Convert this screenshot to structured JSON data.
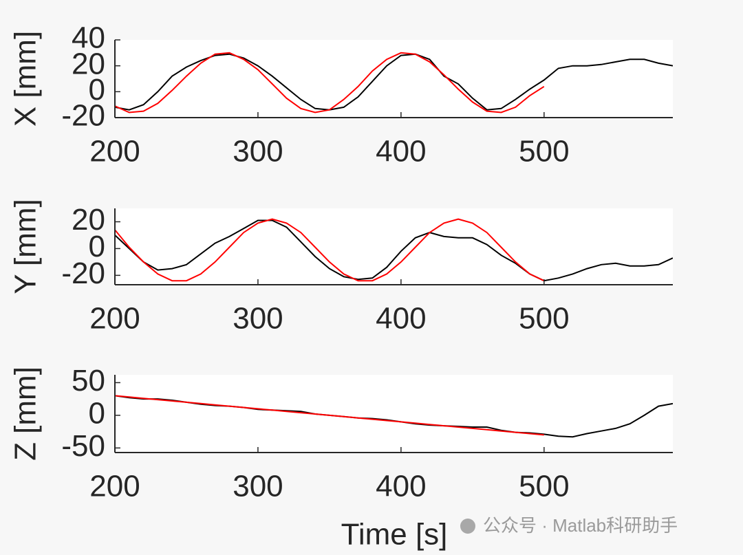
{
  "chart_data": [
    {
      "type": "line",
      "ylabel": "X [mm]",
      "xlim": [
        200,
        590
      ],
      "xticks": [
        200,
        300,
        400,
        500
      ],
      "ylim": [
        -20,
        40
      ],
      "yticks": [
        -20,
        0,
        20,
        40
      ],
      "series": [
        {
          "color": "#000000",
          "x": [
            200,
            210,
            220,
            230,
            240,
            250,
            260,
            270,
            280,
            290,
            300,
            310,
            320,
            330,
            340,
            350,
            360,
            370,
            380,
            390,
            400,
            410,
            420,
            430,
            440,
            450,
            460,
            470,
            480,
            490,
            500,
            510,
            520,
            530,
            540,
            550,
            560,
            570,
            580,
            590
          ],
          "values": [
            -12,
            -14,
            -10,
            0,
            12,
            19,
            24,
            28,
            29,
            26,
            20,
            12,
            3,
            -6,
            -13,
            -14,
            -12,
            -4,
            8,
            20,
            28,
            29,
            25,
            12,
            6,
            -5,
            -14,
            -13,
            -6,
            2,
            9,
            18,
            20,
            20,
            21,
            23,
            25,
            25,
            22,
            20
          ]
        },
        {
          "color": "#ff0000",
          "x": [
            200,
            210,
            220,
            230,
            240,
            250,
            260,
            270,
            280,
            290,
            300,
            310,
            320,
            330,
            340,
            350,
            360,
            370,
            380,
            390,
            400,
            410,
            420,
            430,
            440,
            450,
            460,
            470,
            480,
            490,
            500
          ],
          "values": [
            -11,
            -16,
            -15,
            -9,
            1,
            12,
            22,
            29,
            30,
            25,
            17,
            6,
            -5,
            -13,
            -16,
            -14,
            -6,
            4,
            16,
            25,
            30,
            29,
            23,
            13,
            2,
            -8,
            -15,
            -16,
            -12,
            -3,
            4
          ]
        }
      ]
    },
    {
      "type": "line",
      "ylabel": "Y [mm]",
      "xlim": [
        200,
        590
      ],
      "xticks": [
        200,
        300,
        400,
        500
      ],
      "ylim": [
        -27,
        30
      ],
      "yticks": [
        -20,
        0,
        20
      ],
      "series": [
        {
          "color": "#000000",
          "x": [
            200,
            210,
            220,
            230,
            240,
            250,
            260,
            270,
            280,
            290,
            300,
            310,
            320,
            330,
            340,
            350,
            360,
            370,
            380,
            390,
            400,
            410,
            420,
            430,
            440,
            450,
            460,
            470,
            480,
            490,
            500,
            510,
            520,
            530,
            540,
            550,
            560,
            570,
            580,
            590
          ],
          "values": [
            10,
            0,
            -10,
            -16,
            -15,
            -12,
            -4,
            4,
            9,
            15,
            21,
            21,
            16,
            5,
            -6,
            -15,
            -21,
            -23,
            -22,
            -14,
            -2,
            8,
            12,
            9,
            8,
            8,
            3,
            -5,
            -11,
            -19,
            -24,
            -22,
            -19,
            -15,
            -12,
            -11,
            -13,
            -13,
            -12,
            -7
          ]
        },
        {
          "color": "#ff0000",
          "x": [
            200,
            210,
            220,
            230,
            240,
            250,
            260,
            270,
            280,
            290,
            300,
            310,
            320,
            330,
            340,
            350,
            360,
            370,
            380,
            390,
            400,
            410,
            420,
            430,
            440,
            450,
            460,
            470,
            480,
            490,
            500
          ],
          "values": [
            14,
            1,
            -10,
            -19,
            -24,
            -24,
            -19,
            -10,
            1,
            12,
            19,
            22,
            19,
            12,
            1,
            -10,
            -19,
            -24,
            -24,
            -19,
            -10,
            1,
            12,
            19,
            22,
            19,
            12,
            1,
            -10,
            -19,
            -24
          ]
        }
      ]
    },
    {
      "type": "line",
      "ylabel": "Z [mm]",
      "xlabel": "Time [s]",
      "xlim": [
        200,
        590
      ],
      "xticks": [
        200,
        300,
        400,
        500
      ],
      "ylim": [
        -57,
        62
      ],
      "yticks": [
        -50,
        0,
        50
      ],
      "series": [
        {
          "color": "#000000",
          "x": [
            200,
            210,
            220,
            230,
            240,
            250,
            260,
            270,
            280,
            290,
            300,
            310,
            320,
            330,
            340,
            350,
            360,
            370,
            380,
            390,
            400,
            410,
            420,
            430,
            440,
            450,
            460,
            470,
            480,
            490,
            500,
            510,
            520,
            530,
            540,
            550,
            560,
            570,
            580,
            590
          ],
          "values": [
            30,
            27,
            25,
            25,
            23,
            20,
            17,
            15,
            14,
            12,
            9,
            8,
            7,
            6,
            2,
            0,
            -2,
            -4,
            -5,
            -7,
            -10,
            -13,
            -15,
            -16,
            -17,
            -18,
            -18,
            -23,
            -26,
            -27,
            -29,
            -32,
            -33,
            -28,
            -24,
            -20,
            -13,
            0,
            14,
            18
          ]
        },
        {
          "color": "#ff0000",
          "x": [
            200,
            210,
            220,
            230,
            240,
            250,
            260,
            270,
            280,
            290,
            300,
            310,
            320,
            330,
            340,
            350,
            360,
            370,
            380,
            390,
            400,
            410,
            420,
            430,
            440,
            450,
            460,
            470,
            480,
            490,
            500
          ],
          "values": [
            30,
            28,
            26,
            24,
            22,
            20,
            18,
            16,
            14,
            12,
            10,
            8,
            6,
            4,
            2,
            0,
            -2,
            -4,
            -6,
            -8,
            -10,
            -12,
            -14,
            -16,
            -18,
            -20,
            -22,
            -24,
            -26,
            -28,
            -30
          ]
        }
      ]
    }
  ],
  "watermark": "公众号 · Matlab科研助手"
}
